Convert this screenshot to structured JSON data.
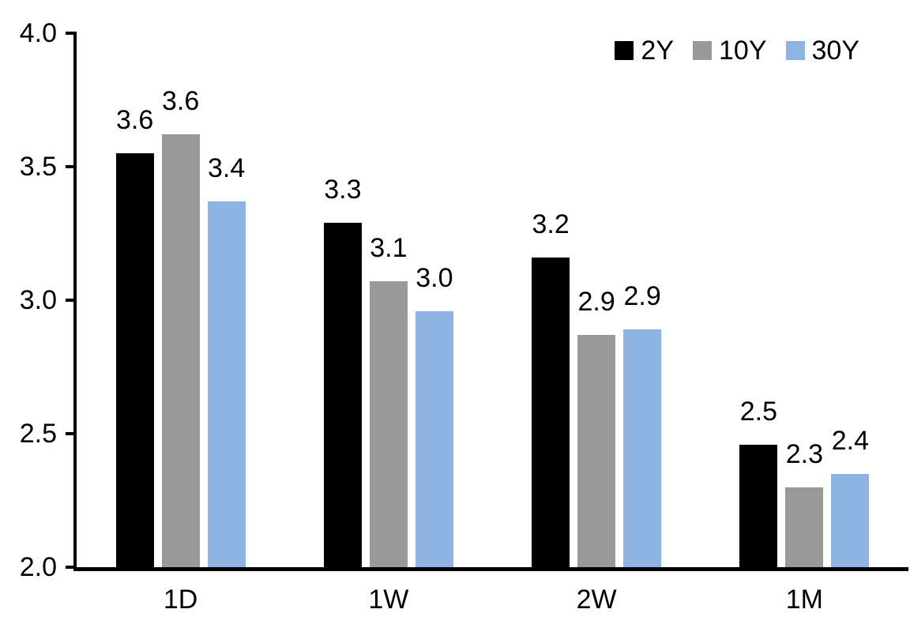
{
  "chart_data": {
    "type": "bar",
    "title": "",
    "xlabel": "",
    "ylabel": "",
    "categories": [
      "1D",
      "1W",
      "2W",
      "1M"
    ],
    "series": [
      {
        "name": "2Y",
        "color": "#000000",
        "values": [
          3.55,
          3.29,
          3.16,
          2.46
        ],
        "labels": [
          "3.6",
          "3.3",
          "3.2",
          "2.5"
        ]
      },
      {
        "name": "10Y",
        "color": "#999999",
        "values": [
          3.62,
          3.07,
          2.87,
          2.3
        ],
        "labels": [
          "3.6",
          "3.1",
          "2.9",
          "2.3"
        ]
      },
      {
        "name": "30Y",
        "color": "#8DB4E2",
        "values": [
          3.37,
          2.96,
          2.89,
          2.35
        ],
        "labels": [
          "3.4",
          "3.0",
          "2.9",
          "2.4"
        ]
      }
    ],
    "ylim": [
      2.0,
      4.0
    ],
    "yticks": [
      4.0,
      3.5,
      3.0,
      2.5,
      2.0
    ],
    "ytick_labels": [
      "4.0",
      "3.5",
      "3.0",
      "2.5",
      "2.0"
    ],
    "grid": false,
    "legend_position": "top-right",
    "axis_color": "#000000",
    "background_color": "#FFFFFF"
  }
}
